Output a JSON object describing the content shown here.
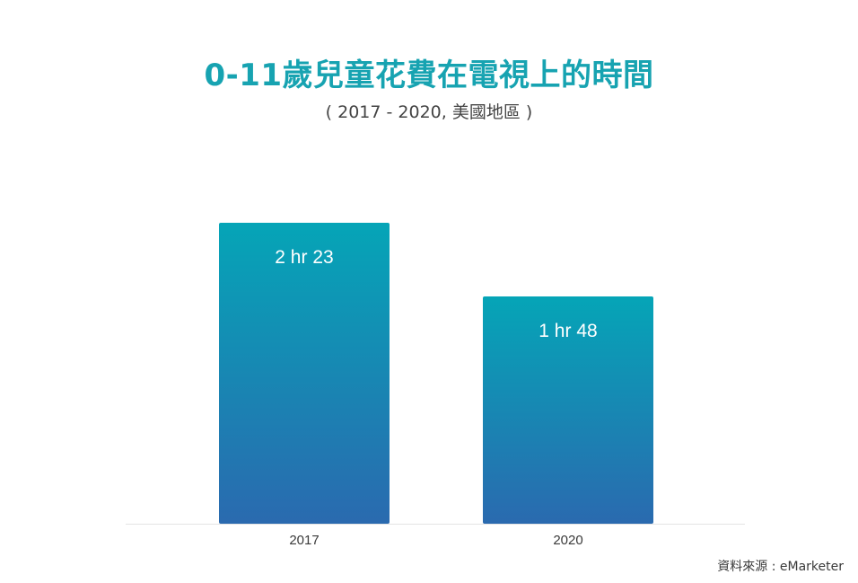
{
  "chart_data": {
    "type": "bar",
    "title": "0-11歲兒童花費在電視上的時間",
    "subtitle": "( 2017 - 2020, 美國地區 )",
    "categories": [
      "2017",
      "2020"
    ],
    "values": [
      143,
      108
    ],
    "value_labels": [
      "2 hr 23",
      "1 hr 48"
    ],
    "value_unit": "minutes",
    "xlabel": "",
    "ylabel": "",
    "ylim": [
      0,
      175
    ],
    "grid": false,
    "legend": "none"
  },
  "source": "資料來源 : eMarketer",
  "colors": {
    "title": "#17a3b1",
    "bar_top": "#05a5b7",
    "bar_bottom": "#2a6aaf",
    "bar_label": "#ffffff",
    "axis_line": "#e3e3e3",
    "tick_label": "#3a3a3a"
  }
}
